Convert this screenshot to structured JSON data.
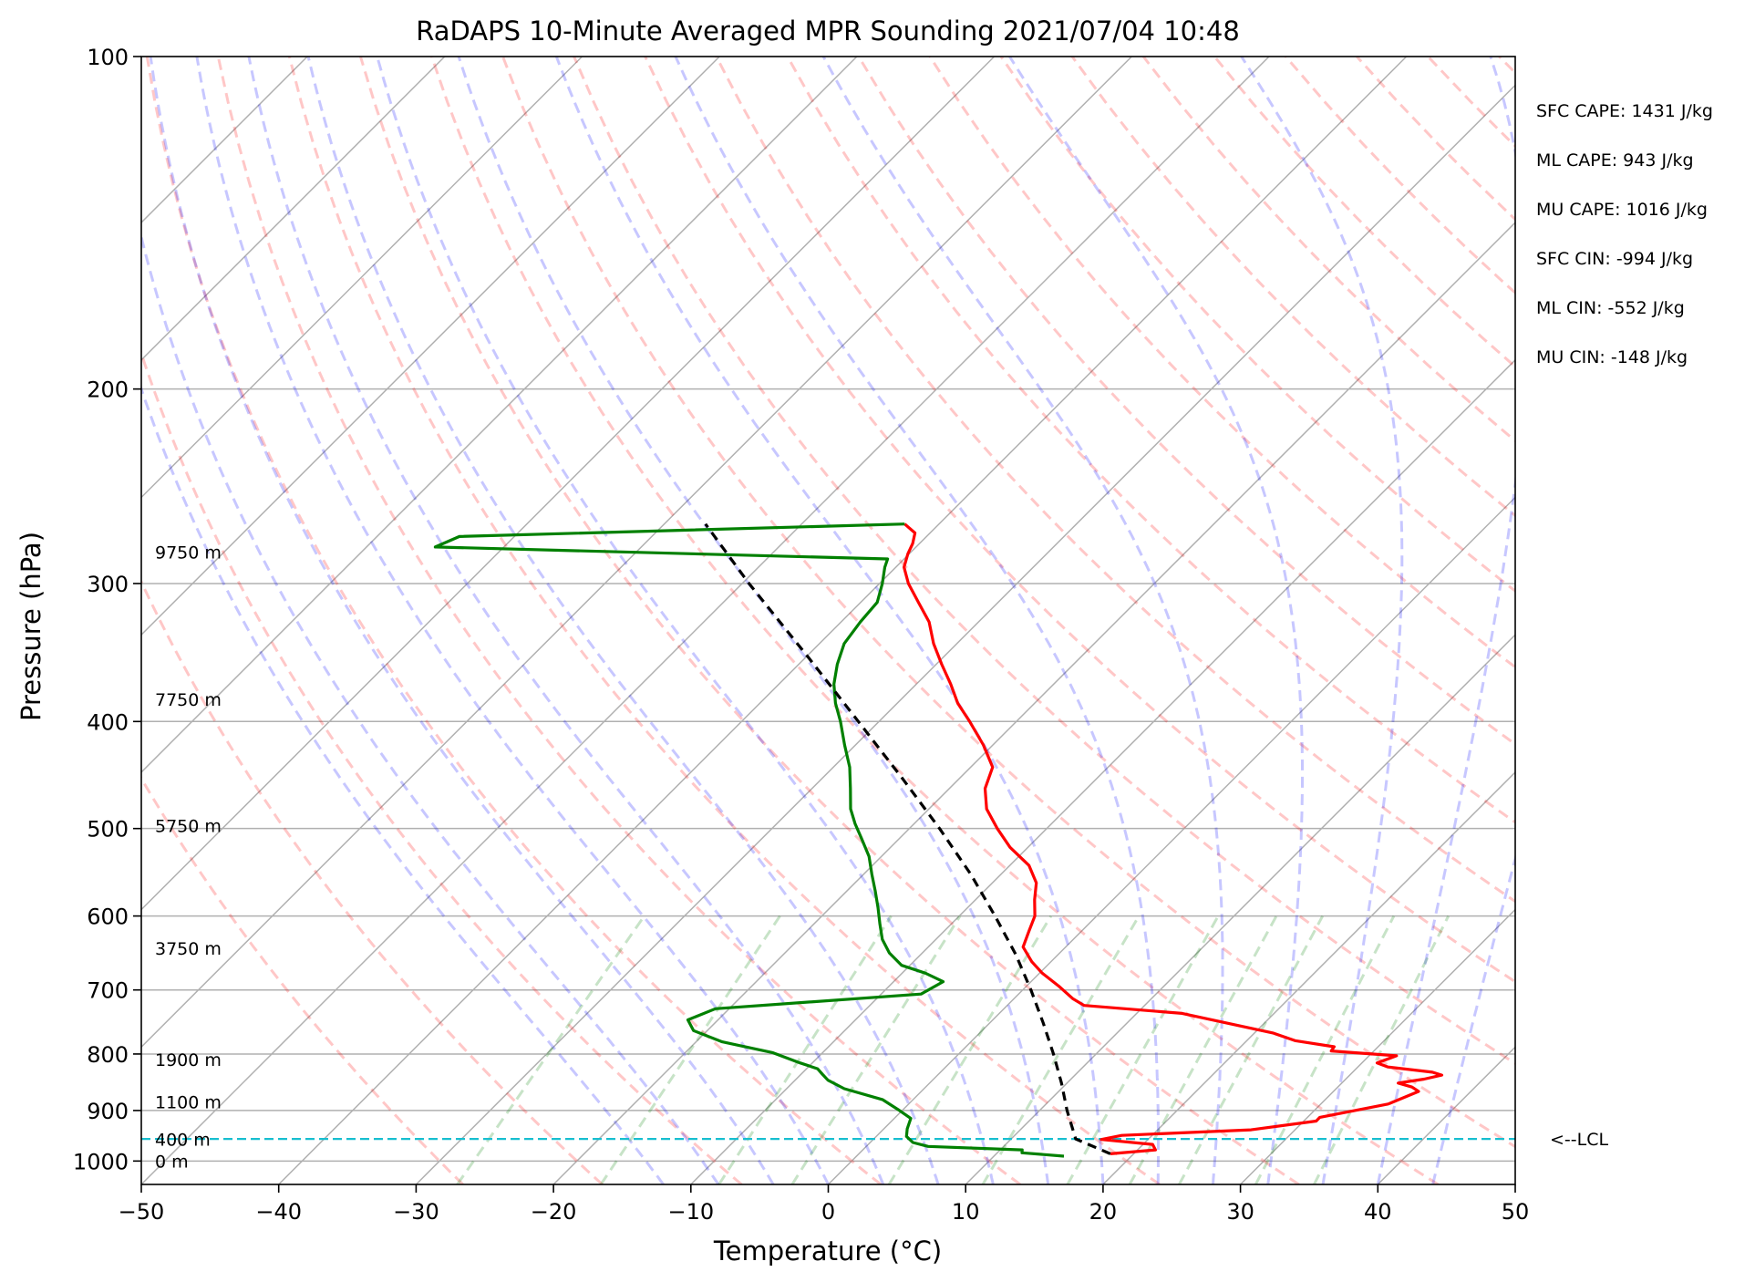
{
  "title": "RaDAPS 10-Minute Averaged MPR Sounding 2021/07/04 10:48",
  "chart_data": {
    "type": "skew-t log-p sounding",
    "xlabel": "Temperature (°C)",
    "ylabel": "Pressure (hPa)",
    "xlim": [
      -50,
      50
    ],
    "ylim_hpa": [
      1050,
      100
    ],
    "x_ticks": [
      -50,
      -40,
      -30,
      -20,
      -10,
      0,
      10,
      20,
      30,
      40,
      50
    ],
    "x_tick_labels": [
      "−50",
      "−40",
      "−30",
      "−20",
      "−10",
      "0",
      "10",
      "20",
      "30",
      "40",
      "50"
    ],
    "y_ticks": [
      100,
      200,
      300,
      400,
      500,
      600,
      700,
      800,
      900,
      1000
    ],
    "y_tick_labels": [
      "100",
      "200",
      "300",
      "400",
      "500",
      "600",
      "700",
      "800",
      "900",
      "1000"
    ],
    "grid": true,
    "background_lines": [
      "isotherms",
      "dry adiabats",
      "moist adiabats",
      "mixing ratio lines"
    ],
    "series": [
      {
        "kind": "temperature",
        "color": "#ff0000",
        "points": [
          {
            "p": 985,
            "t": 18.3
          },
          {
            "p": 977,
            "t": 21.3
          },
          {
            "p": 966,
            "t": 20.7
          },
          {
            "p": 956,
            "t": 16.6
          },
          {
            "p": 948,
            "t": 17.8
          },
          {
            "p": 937,
            "t": 26.8
          },
          {
            "p": 920,
            "t": 30.9
          },
          {
            "p": 913,
            "t": 30.9
          },
          {
            "p": 888,
            "t": 34.9
          },
          {
            "p": 865,
            "t": 36.2
          },
          {
            "p": 857,
            "t": 35.4
          },
          {
            "p": 850,
            "t": 34.1
          },
          {
            "p": 843,
            "t": 35.7
          },
          {
            "p": 836,
            "t": 36.7
          },
          {
            "p": 831,
            "t": 35.8
          },
          {
            "p": 822,
            "t": 32.2
          },
          {
            "p": 815,
            "t": 31.1
          },
          {
            "p": 803,
            "t": 32.0
          },
          {
            "p": 795,
            "t": 26.9
          },
          {
            "p": 788,
            "t": 26.8
          },
          {
            "p": 778,
            "t": 23.5
          },
          {
            "p": 766,
            "t": 21.4
          },
          {
            "p": 735,
            "t": 13.3
          },
          {
            "p": 723,
            "t": 5.6
          },
          {
            "p": 713,
            "t": 4.3
          },
          {
            "p": 694,
            "t": 2.3
          },
          {
            "p": 676,
            "t": 0.2
          },
          {
            "p": 660,
            "t": -1.4
          },
          {
            "p": 640,
            "t": -3.1
          },
          {
            "p": 620,
            "t": -3.8
          },
          {
            "p": 600,
            "t": -4.5
          },
          {
            "p": 580,
            "t": -5.7
          },
          {
            "p": 560,
            "t": -6.8
          },
          {
            "p": 540,
            "t": -8.6
          },
          {
            "p": 520,
            "t": -11.3
          },
          {
            "p": 500,
            "t": -13.6
          },
          {
            "p": 480,
            "t": -15.8
          },
          {
            "p": 460,
            "t": -17.4
          },
          {
            "p": 440,
            "t": -18.4
          },
          {
            "p": 420,
            "t": -20.7
          },
          {
            "p": 400,
            "t": -23.4
          },
          {
            "p": 385,
            "t": -25.6
          },
          {
            "p": 370,
            "t": -27.5
          },
          {
            "p": 355,
            "t": -29.6
          },
          {
            "p": 340,
            "t": -31.7
          },
          {
            "p": 325,
            "t": -33.6
          },
          {
            "p": 312,
            "t": -35.8
          },
          {
            "p": 300,
            "t": -37.9
          },
          {
            "p": 290,
            "t": -39.4
          },
          {
            "p": 282,
            "t": -40.1
          },
          {
            "p": 276,
            "t": -40.5
          },
          {
            "p": 270,
            "t": -41.1
          },
          {
            "p": 265,
            "t": -42.5
          }
        ]
      },
      {
        "kind": "dewpoint",
        "color": "#008000",
        "points": [
          {
            "p": 990,
            "t": 15.1
          },
          {
            "p": 983,
            "t": 11.8
          },
          {
            "p": 977,
            "t": 11.6
          },
          {
            "p": 970,
            "t": 4.5
          },
          {
            "p": 962,
            "t": 3.1
          },
          {
            "p": 950,
            "t": 2.2
          },
          {
            "p": 935,
            "t": 1.7
          },
          {
            "p": 915,
            "t": 1.2
          },
          {
            "p": 900,
            "t": -0.2
          },
          {
            "p": 880,
            "t": -2.2
          },
          {
            "p": 860,
            "t": -5.8
          },
          {
            "p": 845,
            "t": -7.6
          },
          {
            "p": 835,
            "t": -8.4
          },
          {
            "p": 825,
            "t": -9.2
          },
          {
            "p": 815,
            "t": -10.9
          },
          {
            "p": 798,
            "t": -13.6
          },
          {
            "p": 780,
            "t": -18.1
          },
          {
            "p": 762,
            "t": -21.0
          },
          {
            "p": 745,
            "t": -22.2
          },
          {
            "p": 728,
            "t": -21.0
          },
          {
            "p": 706,
            "t": -7.1
          },
          {
            "p": 688,
            "t": -6.4
          },
          {
            "p": 676,
            "t": -8.3
          },
          {
            "p": 665,
            "t": -10.6
          },
          {
            "p": 648,
            "t": -12.4
          },
          {
            "p": 630,
            "t": -13.9
          },
          {
            "p": 610,
            "t": -15.2
          },
          {
            "p": 590,
            "t": -16.5
          },
          {
            "p": 570,
            "t": -17.9
          },
          {
            "p": 550,
            "t": -19.4
          },
          {
            "p": 530,
            "t": -20.9
          },
          {
            "p": 510,
            "t": -22.8
          },
          {
            "p": 495,
            "t": -24.3
          },
          {
            "p": 480,
            "t": -25.7
          },
          {
            "p": 460,
            "t": -27.2
          },
          {
            "p": 440,
            "t": -28.8
          },
          {
            "p": 420,
            "t": -30.8
          },
          {
            "p": 400,
            "t": -32.8
          },
          {
            "p": 385,
            "t": -34.5
          },
          {
            "p": 370,
            "t": -36.0
          },
          {
            "p": 355,
            "t": -37.2
          },
          {
            "p": 340,
            "t": -38.2
          },
          {
            "p": 325,
            "t": -38.6
          },
          {
            "p": 312,
            "t": -38.8
          },
          {
            "p": 300,
            "t": -39.8
          },
          {
            "p": 290,
            "t": -40.8
          },
          {
            "p": 285,
            "t": -41.2
          },
          {
            "p": 278,
            "t": -75.0
          },
          {
            "p": 272,
            "t": -74.0
          },
          {
            "p": 265,
            "t": -42.5
          }
        ]
      },
      {
        "kind": "parcel",
        "color": "#000000",
        "points": [
          {
            "p": 985,
            "t": 18.3
          },
          {
            "p": 955,
            "t": 14.7
          },
          {
            "p": 900,
            "t": 12.0
          },
          {
            "p": 850,
            "t": 9.6
          },
          {
            "p": 800,
            "t": 6.9
          },
          {
            "p": 750,
            "t": 3.9
          },
          {
            "p": 700,
            "t": 0.6
          },
          {
            "p": 650,
            "t": -3.1
          },
          {
            "p": 600,
            "t": -7.4
          },
          {
            "p": 550,
            "t": -12.2
          },
          {
            "p": 500,
            "t": -17.8
          },
          {
            "p": 450,
            "t": -24.2
          },
          {
            "p": 400,
            "t": -31.5
          },
          {
            "p": 350,
            "t": -39.8
          },
          {
            "p": 300,
            "t": -49.5
          },
          {
            "p": 265,
            "t": -57.0
          }
        ]
      }
    ],
    "lcl": {
      "p": 955,
      "label": "<--LCL",
      "color": "#17becf"
    },
    "height_labels": [
      {
        "text": "0 m",
        "p": 1000
      },
      {
        "text": "400 m",
        "p": 956
      },
      {
        "text": "1100 m",
        "p": 884
      },
      {
        "text": "1900 m",
        "p": 809
      },
      {
        "text": "3750 m",
        "p": 642
      },
      {
        "text": "5750 m",
        "p": 497
      },
      {
        "text": "7750 m",
        "p": 382
      },
      {
        "text": "9750 m",
        "p": 281
      }
    ],
    "indices": [
      "SFC CAPE: 1431 J/kg",
      "ML CAPE: 943 J/kg",
      "MU CAPE: 1016 J/kg",
      "SFC CIN: -994 J/kg",
      "ML CIN: -552 J/kg",
      "MU CIN: -148 J/kg"
    ]
  }
}
